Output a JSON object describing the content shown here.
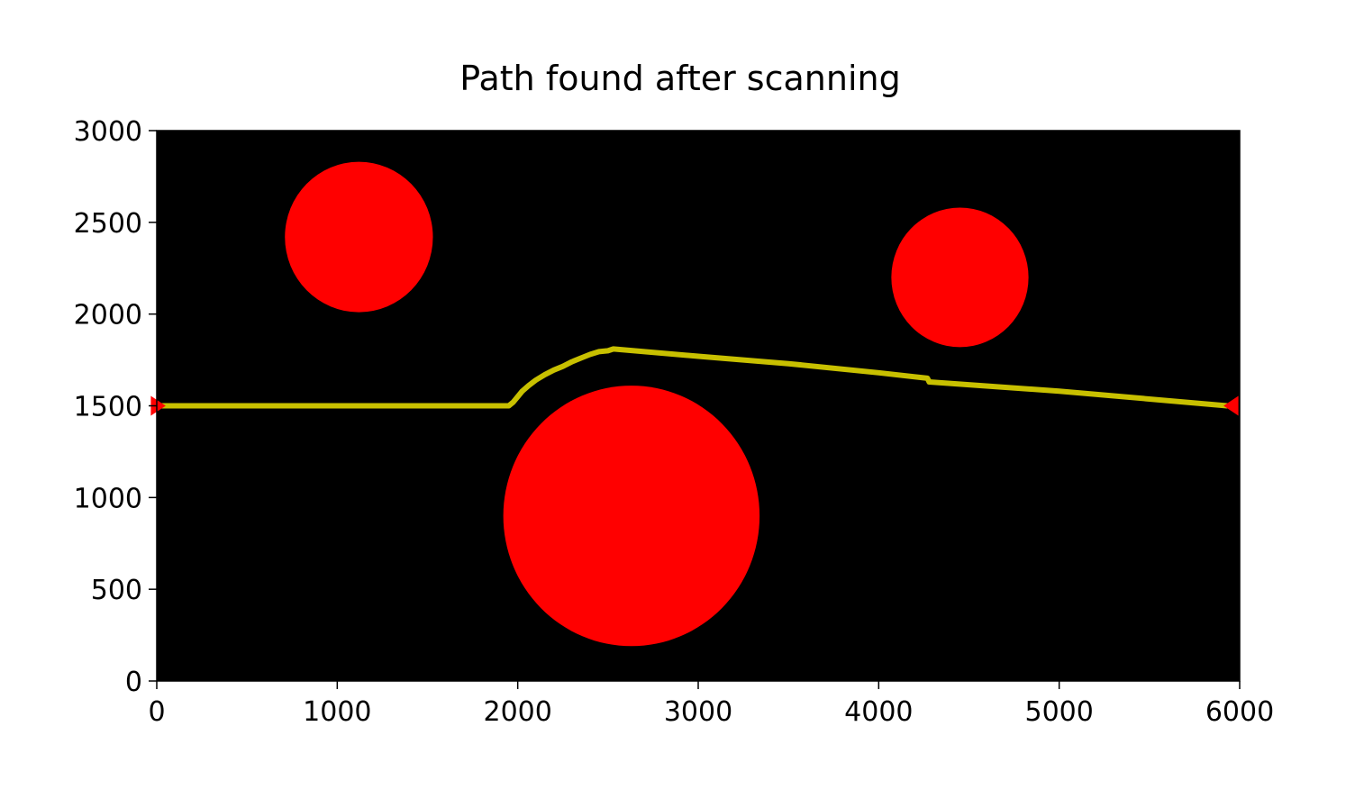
{
  "chart_data": {
    "type": "scatter",
    "title": "Path found after scanning",
    "xlabel": "",
    "ylabel": "",
    "xlim": [
      0,
      6000
    ],
    "ylim": [
      0,
      3000
    ],
    "xticks": [
      "0",
      "1000",
      "2000",
      "3000",
      "4000",
      "5000",
      "6000"
    ],
    "yticks": [
      "0",
      "500",
      "1000",
      "1500",
      "2000",
      "2500",
      "3000"
    ],
    "background_color": "#000000",
    "grid": false,
    "obstacles": [
      {
        "cx": 1120,
        "cy": 2420,
        "r": 410,
        "color": "#ff0000"
      },
      {
        "cx": 2630,
        "cy": 900,
        "r": 710,
        "color": "#ff0000"
      },
      {
        "cx": 4450,
        "cy": 2200,
        "r": 380,
        "color": "#ff0000"
      }
    ],
    "path": {
      "color": "#c8c000",
      "points": [
        [
          0,
          1500
        ],
        [
          1950,
          1500
        ],
        [
          1975,
          1520
        ],
        [
          2000,
          1550
        ],
        [
          2025,
          1580
        ],
        [
          2060,
          1610
        ],
        [
          2100,
          1640
        ],
        [
          2150,
          1670
        ],
        [
          2200,
          1695
        ],
        [
          2250,
          1715
        ],
        [
          2300,
          1740
        ],
        [
          2350,
          1760
        ],
        [
          2400,
          1780
        ],
        [
          2450,
          1795
        ],
        [
          2500,
          1800
        ],
        [
          2530,
          1810
        ],
        [
          3000,
          1770
        ],
        [
          3500,
          1730
        ],
        [
          4000,
          1680
        ],
        [
          4270,
          1650
        ],
        [
          4280,
          1630
        ],
        [
          5000,
          1580
        ],
        [
          5930,
          1500
        ]
      ]
    },
    "markers": [
      {
        "x": 0,
        "y": 1500,
        "shape": "triangle-right",
        "color": "#ff0000"
      },
      {
        "x": 5960,
        "y": 1500,
        "shape": "triangle-left",
        "color": "#ff0000"
      }
    ]
  }
}
